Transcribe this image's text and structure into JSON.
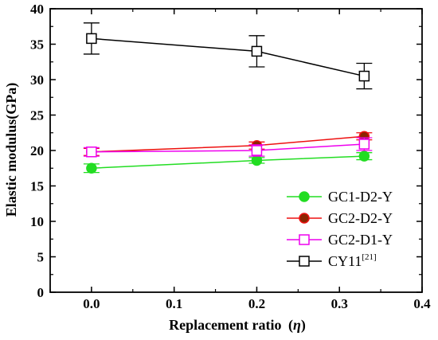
{
  "chart_data": {
    "type": "line",
    "xlabel": "Replacement ratio",
    "xlabel_symbol": "η",
    "ylabel": "Elastic modulus(GPa)",
    "xlim": [
      -0.05,
      0.4
    ],
    "ylim": [
      0,
      40
    ],
    "x_ticks": [
      "0.0",
      "0.1",
      "0.2",
      "0.3",
      "0.4"
    ],
    "x_tick_values": [
      0.0,
      0.1,
      0.2,
      0.3,
      0.4
    ],
    "y_ticks": [
      "0",
      "5",
      "10",
      "15",
      "20",
      "25",
      "30",
      "35",
      "40"
    ],
    "y_tick_values": [
      0,
      5,
      10,
      15,
      20,
      25,
      30,
      35,
      40
    ],
    "legend_position": "bottom-right",
    "series": [
      {
        "name": "GC1-D2-Y",
        "color": "#22dd22",
        "marker": "filled-circle",
        "x": [
          0.0,
          0.2,
          0.33
        ],
        "values": [
          17.5,
          18.6,
          19.2
        ],
        "err": [
          0.6,
          0.4,
          0.5
        ]
      },
      {
        "name": "GC2-D2-Y",
        "color": "#ee1111",
        "marker": "filled-circle",
        "marker_fill": "#8b2500",
        "x": [
          0.0,
          0.2,
          0.33
        ],
        "values": [
          19.8,
          20.7,
          22.0
        ],
        "err": [
          0.5,
          0.5,
          0.5
        ]
      },
      {
        "name": "GC2-D1-Y",
        "color": "#ee00ee",
        "marker": "open-square",
        "x": [
          0.0,
          0.2,
          0.33
        ],
        "values": [
          19.8,
          20.0,
          20.9
        ],
        "err": [
          0.6,
          0.8,
          0.9
        ]
      },
      {
        "name": "CY11",
        "name_sup": "[21]",
        "color": "#000000",
        "marker": "open-square",
        "x": [
          0.0,
          0.2,
          0.33
        ],
        "values": [
          35.8,
          34.0,
          30.5
        ],
        "err": [
          2.2,
          2.2,
          1.8
        ]
      }
    ]
  }
}
